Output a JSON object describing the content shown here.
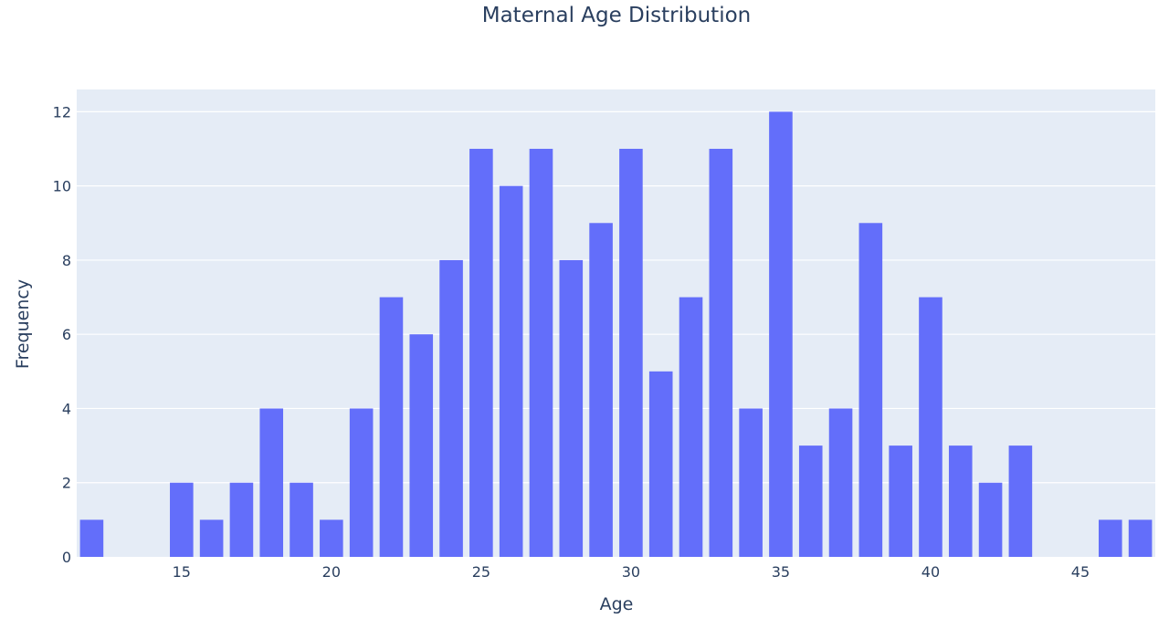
{
  "chart_data": {
    "type": "bar",
    "title": "Maternal Age Distribution",
    "xlabel": "Age",
    "ylabel": "Frequency",
    "xlim": [
      11.5,
      47.5
    ],
    "ylim": [
      0,
      12.6
    ],
    "x_ticks": [
      15,
      20,
      25,
      30,
      35,
      40,
      45
    ],
    "y_ticks": [
      0,
      2,
      4,
      6,
      8,
      10,
      12
    ],
    "grid": true,
    "bar_color": "#636efa",
    "plot_background": "#e5ecf6",
    "x": [
      12,
      13,
      14,
      15,
      16,
      17,
      18,
      19,
      20,
      21,
      22,
      23,
      24,
      25,
      26,
      27,
      28,
      29,
      30,
      31,
      32,
      33,
      34,
      35,
      36,
      37,
      38,
      39,
      40,
      41,
      42,
      43,
      44,
      45,
      46,
      47
    ],
    "values": [
      1,
      0,
      0,
      2,
      1,
      2,
      4,
      2,
      1,
      4,
      7,
      6,
      8,
      11,
      10,
      11,
      8,
      9,
      11,
      5,
      7,
      11,
      4,
      12,
      3,
      4,
      9,
      3,
      7,
      3,
      2,
      3,
      0,
      0,
      1,
      1
    ]
  }
}
